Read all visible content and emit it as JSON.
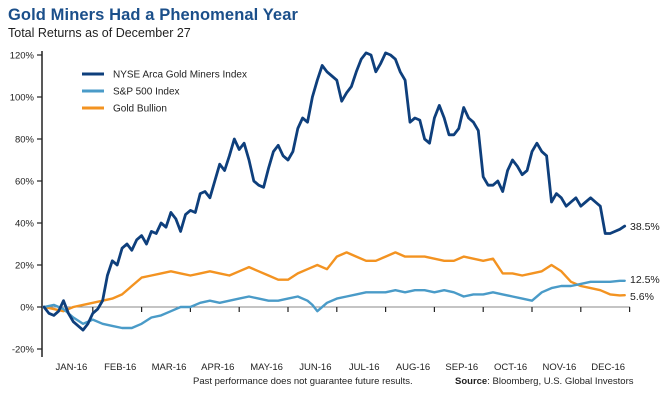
{
  "chart_data": {
    "type": "line",
    "title": "Gold Miners Had a Phenomenal Year",
    "subtitle": "Total Returns as of December 27",
    "xlabel": "",
    "ylabel": "",
    "ylim": [
      -20,
      120
    ],
    "yticks": [
      -20,
      0,
      20,
      40,
      60,
      80,
      100,
      120
    ],
    "ytick_labels": [
      "-20%",
      "0%",
      "20%",
      "40%",
      "60%",
      "80%",
      "100%",
      "120%"
    ],
    "xlim": [
      0,
      11.9
    ],
    "xtick_labels": [
      "JAN-16",
      "FEB-16",
      "MAR-16",
      "APR-16",
      "MAY-16",
      "JUN-16",
      "JUL-16",
      "AUG-16",
      "SEP-16",
      "OCT-16",
      "NOV-16",
      "DEC-16"
    ],
    "grid": false,
    "legend_position": "top-left",
    "series": [
      {
        "name": "NYSE Arca Gold Miners Index",
        "color": "#0e3f7c",
        "end_label": "38.5%",
        "x": [
          0,
          0.1,
          0.2,
          0.3,
          0.4,
          0.5,
          0.6,
          0.7,
          0.8,
          0.9,
          1.0,
          1.1,
          1.2,
          1.3,
          1.4,
          1.5,
          1.6,
          1.7,
          1.8,
          1.9,
          2.0,
          2.1,
          2.2,
          2.3,
          2.4,
          2.5,
          2.6,
          2.7,
          2.8,
          2.9,
          3.0,
          3.1,
          3.2,
          3.3,
          3.4,
          3.5,
          3.6,
          3.7,
          3.8,
          3.9,
          4.0,
          4.1,
          4.2,
          4.3,
          4.4,
          4.5,
          4.6,
          4.7,
          4.8,
          4.9,
          5.0,
          5.1,
          5.2,
          5.3,
          5.4,
          5.5,
          5.6,
          5.7,
          5.8,
          5.9,
          6.0,
          6.1,
          6.2,
          6.3,
          6.4,
          6.5,
          6.6,
          6.7,
          6.8,
          6.9,
          7.0,
          7.1,
          7.2,
          7.3,
          7.4,
          7.5,
          7.6,
          7.7,
          7.8,
          7.9,
          8.0,
          8.1,
          8.2,
          8.3,
          8.4,
          8.5,
          8.6,
          8.7,
          8.8,
          8.9,
          9.0,
          9.1,
          9.2,
          9.3,
          9.4,
          9.5,
          9.6,
          9.7,
          9.8,
          9.9,
          10.0,
          10.1,
          10.2,
          10.3,
          10.4,
          10.5,
          10.6,
          10.7,
          10.8,
          10.9,
          11.0,
          11.1,
          11.2,
          11.3,
          11.4,
          11.5,
          11.6,
          11.7,
          11.8,
          11.9
        ],
        "values": [
          0,
          -3,
          -4,
          -2,
          3,
          -3,
          -7,
          -9,
          -11,
          -8,
          -3,
          -1,
          3,
          15,
          22,
          20,
          28,
          30,
          27,
          32,
          34,
          30,
          36,
          35,
          40,
          38,
          45,
          42,
          36,
          44,
          46,
          45,
          54,
          55,
          52,
          60,
          68,
          65,
          72,
          80,
          75,
          78,
          70,
          60,
          58,
          57,
          66,
          74,
          77,
          72,
          70,
          74,
          85,
          90,
          88,
          100,
          108,
          115,
          112,
          110,
          108,
          98,
          102,
          105,
          112,
          118,
          121,
          120,
          112,
          116,
          121,
          120,
          118,
          112,
          108,
          88,
          90,
          89,
          80,
          78,
          90,
          96,
          90,
          82,
          82,
          85,
          95,
          90,
          88,
          84,
          62,
          58,
          58,
          60,
          55,
          65,
          70,
          67,
          63,
          65,
          74,
          78,
          74,
          72,
          50,
          54,
          52,
          48,
          50,
          52,
          48,
          50,
          52,
          50,
          48,
          35,
          35,
          36,
          37,
          38.5
        ]
      },
      {
        "name": "S&P 500 Index",
        "color": "#4a9bc8",
        "end_label": "12.5%",
        "x": [
          0,
          0.2,
          0.4,
          0.6,
          0.8,
          1.0,
          1.2,
          1.4,
          1.6,
          1.8,
          2.0,
          2.2,
          2.4,
          2.6,
          2.8,
          3.0,
          3.2,
          3.4,
          3.6,
          3.8,
          4.0,
          4.2,
          4.4,
          4.6,
          4.8,
          5.0,
          5.2,
          5.4,
          5.5,
          5.6,
          5.8,
          6.0,
          6.2,
          6.4,
          6.6,
          6.8,
          7.0,
          7.2,
          7.4,
          7.6,
          7.8,
          8.0,
          8.2,
          8.4,
          8.6,
          8.8,
          9.0,
          9.2,
          9.4,
          9.6,
          9.8,
          10.0,
          10.2,
          10.4,
          10.6,
          10.8,
          11.0,
          11.2,
          11.4,
          11.6,
          11.8,
          11.9
        ],
        "values": [
          0,
          1,
          -1,
          -5,
          -8,
          -6,
          -8,
          -9,
          -10,
          -10,
          -8,
          -5,
          -4,
          -2,
          0,
          0,
          2,
          3,
          2,
          3,
          4,
          5,
          4,
          3,
          3,
          4,
          5,
          3,
          1,
          -2,
          2,
          4,
          5,
          6,
          7,
          7,
          7,
          8,
          7,
          8,
          8,
          7,
          8,
          7,
          5,
          6,
          6,
          7,
          6,
          5,
          4,
          3,
          7,
          9,
          10,
          10,
          11,
          12,
          12,
          12,
          12.5,
          12.5
        ]
      },
      {
        "name": "Gold Bullion",
        "color": "#f39321",
        "end_label": "5.6%",
        "x": [
          0,
          0.2,
          0.4,
          0.6,
          0.8,
          1.0,
          1.2,
          1.4,
          1.6,
          1.8,
          2.0,
          2.2,
          2.4,
          2.6,
          2.8,
          3.0,
          3.2,
          3.4,
          3.6,
          3.8,
          4.0,
          4.2,
          4.4,
          4.6,
          4.8,
          5.0,
          5.2,
          5.4,
          5.6,
          5.8,
          6.0,
          6.2,
          6.4,
          6.6,
          6.8,
          7.0,
          7.2,
          7.4,
          7.6,
          7.8,
          8.0,
          8.2,
          8.4,
          8.6,
          8.8,
          9.0,
          9.2,
          9.4,
          9.6,
          9.8,
          10.0,
          10.2,
          10.4,
          10.6,
          10.8,
          11.0,
          11.2,
          11.4,
          11.6,
          11.8,
          11.9
        ],
        "values": [
          0,
          -1,
          -2,
          0,
          1,
          2,
          3,
          4,
          6,
          10,
          14,
          15,
          16,
          17,
          16,
          15,
          16,
          17,
          16,
          15,
          17,
          19,
          17,
          15,
          13,
          13,
          16,
          18,
          20,
          18,
          24,
          26,
          24,
          22,
          22,
          24,
          26,
          24,
          24,
          24,
          23,
          22,
          22,
          24,
          23,
          22,
          23,
          16,
          16,
          15,
          16,
          17,
          20,
          17,
          12,
          10,
          9,
          8,
          6,
          5.5,
          5.6
        ]
      }
    ]
  },
  "footer": {
    "disclaimer": "Past performance does not guarantee future results.",
    "source_label": "Source",
    "source_text": ": Bloomberg, U.S. Global Investors"
  }
}
